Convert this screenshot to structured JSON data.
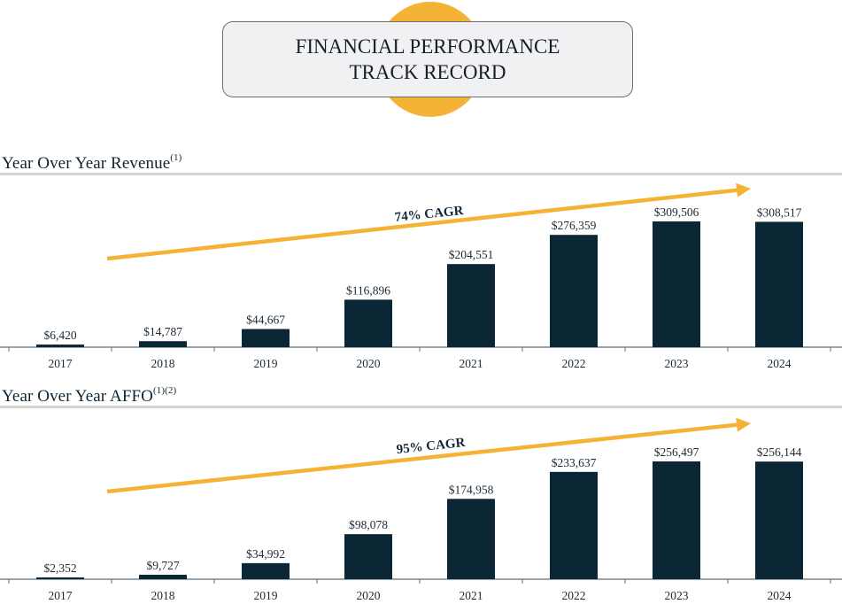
{
  "header": {
    "title": "FINANCIAL PERFORMANCE TRACK RECORD",
    "accent_circle_color": "#f5b335",
    "box_fill": "#f1f1f3"
  },
  "colors": {
    "bar": "#0b2635",
    "arrow": "#f5b335",
    "axis": "#5f6f7b",
    "rule": "#d4d4d4"
  },
  "sections": [
    {
      "title": "Year Over Year Revenue",
      "footnote": "(1)",
      "cagr_label": "74% CAGR"
    },
    {
      "title": "Year Over Year AFFO",
      "footnote": "(1)(2)",
      "cagr_label": "95% CAGR"
    }
  ],
  "chart_data": [
    {
      "type": "bar",
      "title": "Year Over Year Revenue(1)",
      "xlabel": "",
      "ylabel": "",
      "categories": [
        "2017",
        "2018",
        "2019",
        "2020",
        "2021",
        "2022",
        "2023",
        "2024"
      ],
      "values": [
        6420,
        14787,
        44667,
        116896,
        204551,
        276359,
        309506,
        308517
      ],
      "value_labels": [
        "$6,420",
        "$14,787",
        "$44,667",
        "$116,896",
        "$204,551",
        "$276,359",
        "$309,506",
        "$308,517"
      ],
      "annotation": "74% CAGR",
      "grid": false,
      "legend": "none",
      "ylim": [
        0,
        320000
      ]
    },
    {
      "type": "bar",
      "title": "Year Over Year AFFO(1)(2)",
      "xlabel": "",
      "ylabel": "",
      "categories": [
        "2017",
        "2018",
        "2019",
        "2020",
        "2021",
        "2022",
        "2023",
        "2024"
      ],
      "values": [
        2352,
        9727,
        34992,
        98078,
        174958,
        233637,
        256497,
        256144
      ],
      "value_labels": [
        "$2,352",
        "$9,727",
        "$34,992",
        "$98,078",
        "$174,958",
        "$233,637",
        "$256,497",
        "$256,144"
      ],
      "annotation": "95% CAGR",
      "grid": false,
      "legend": "none",
      "ylim": [
        0,
        265000
      ]
    }
  ]
}
